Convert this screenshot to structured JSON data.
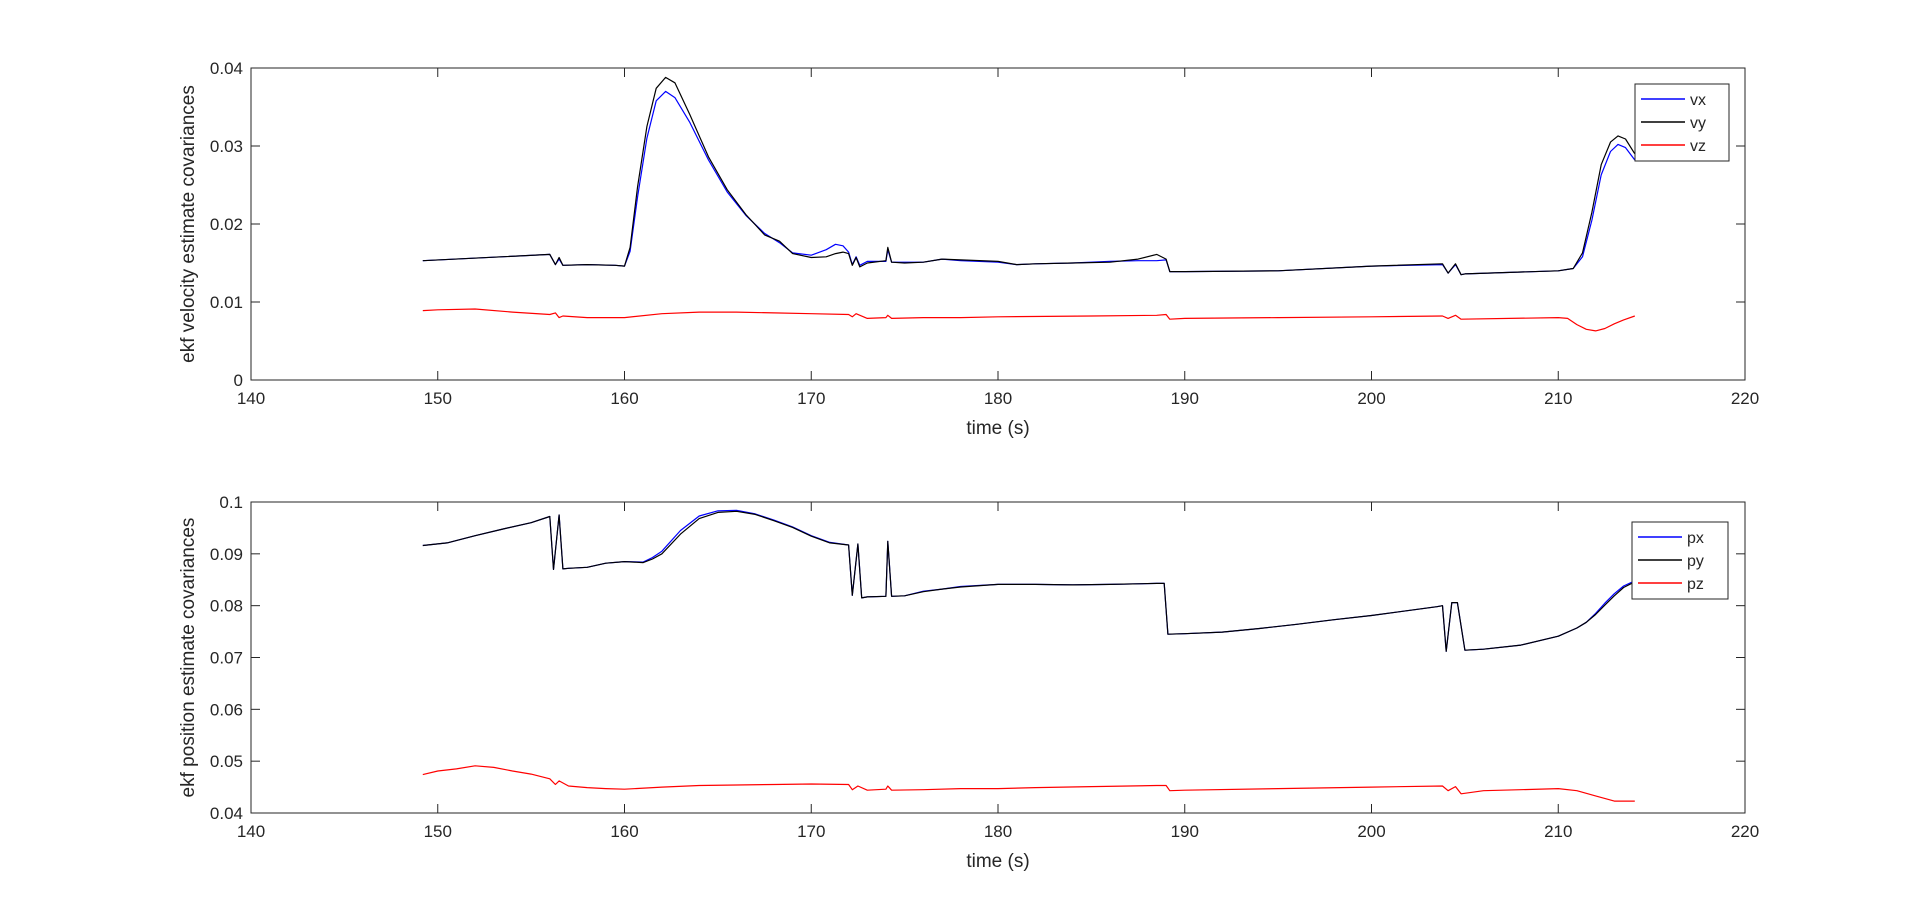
{
  "colors": {
    "blue": "#0000ff",
    "black": "#000000",
    "red": "#ff0000",
    "axis": "#262626",
    "background": "#ffffff"
  },
  "chart_data": [
    {
      "type": "line",
      "xlabel": "time (s)",
      "ylabel": "ekf velocity estimate covariances",
      "xlim": [
        140,
        220
      ],
      "ylim": [
        0,
        0.04
      ],
      "xticks": [
        "140",
        "150",
        "160",
        "170",
        "180",
        "190",
        "200",
        "210",
        "220"
      ],
      "yticks": [
        "0",
        "0.01",
        "0.02",
        "0.03",
        "0.04"
      ],
      "grid": false,
      "legend_position": "top-right",
      "series": [
        {
          "name": "vx",
          "color": "#0000ff",
          "x": [
            149.2,
            156,
            156.3,
            156.5,
            156.7,
            158,
            159.5,
            160,
            160.3,
            160.7,
            161.2,
            161.7,
            162.2,
            162.7,
            163.5,
            164.5,
            165.5,
            166.5,
            167.5,
            168.3,
            169,
            170,
            170.8,
            171.3,
            171.7,
            172,
            172.2,
            172.4,
            172.6,
            173,
            174,
            174.1,
            174.3,
            175,
            176,
            177,
            178,
            180,
            181,
            182,
            184,
            186,
            187.5,
            188.5,
            189,
            189.2,
            190,
            195,
            200,
            203.8,
            204.1,
            204.5,
            204.8,
            205,
            210,
            210.8,
            211.3,
            211.8,
            212.3,
            212.8,
            213.2,
            213.6,
            214.1
          ],
          "y": [
            0.0153,
            0.0161,
            0.0148,
            0.0155,
            0.0147,
            0.0148,
            0.0147,
            0.0146,
            0.0165,
            0.0235,
            0.031,
            0.0358,
            0.037,
            0.0362,
            0.033,
            0.0282,
            0.0241,
            0.0211,
            0.0188,
            0.0176,
            0.0163,
            0.016,
            0.0167,
            0.0174,
            0.0172,
            0.0164,
            0.0148,
            0.0158,
            0.0147,
            0.0152,
            0.0152,
            0.0167,
            0.0151,
            0.0151,
            0.0151,
            0.0155,
            0.0153,
            0.0151,
            0.0148,
            0.0149,
            0.015,
            0.0152,
            0.0153,
            0.0153,
            0.0154,
            0.0139,
            0.0139,
            0.014,
            0.0146,
            0.0148,
            0.0137,
            0.0148,
            0.0135,
            0.0136,
            0.014,
            0.0143,
            0.0158,
            0.0205,
            0.0263,
            0.0293,
            0.0302,
            0.0298,
            0.0282
          ]
        },
        {
          "name": "vy",
          "color": "#000000",
          "x": [
            149.2,
            156,
            156.3,
            156.5,
            156.7,
            158,
            159.5,
            160,
            160.3,
            160.7,
            161.2,
            161.7,
            162.2,
            162.7,
            163.5,
            164.5,
            165.5,
            166.5,
            167.5,
            168.3,
            169,
            170,
            170.8,
            171.3,
            171.7,
            172,
            172.2,
            172.4,
            172.6,
            173,
            174,
            174.1,
            174.3,
            175,
            176,
            177,
            178,
            180,
            181,
            182,
            184,
            186,
            187.5,
            188.5,
            189,
            189.2,
            190,
            195,
            200,
            203.8,
            204.1,
            204.5,
            204.8,
            205,
            210,
            210.8,
            211.3,
            211.8,
            212.3,
            212.8,
            213.2,
            213.6,
            214.1
          ],
          "y": [
            0.0153,
            0.0161,
            0.0148,
            0.0157,
            0.0147,
            0.0148,
            0.0147,
            0.0146,
            0.017,
            0.0248,
            0.0325,
            0.0374,
            0.0388,
            0.0381,
            0.034,
            0.0286,
            0.0244,
            0.0212,
            0.0186,
            0.0178,
            0.0162,
            0.0157,
            0.0158,
            0.0162,
            0.0164,
            0.0162,
            0.0147,
            0.0157,
            0.0145,
            0.015,
            0.0153,
            0.017,
            0.0151,
            0.015,
            0.0151,
            0.0155,
            0.0154,
            0.0152,
            0.0148,
            0.0149,
            0.015,
            0.0151,
            0.0155,
            0.0161,
            0.0155,
            0.0139,
            0.0139,
            0.014,
            0.0146,
            0.0149,
            0.0137,
            0.0149,
            0.0135,
            0.0136,
            0.014,
            0.0143,
            0.0163,
            0.0215,
            0.0276,
            0.0305,
            0.0313,
            0.0309,
            0.029
          ]
        },
        {
          "name": "vz",
          "color": "#ff0000",
          "x": [
            149.2,
            150,
            152,
            154,
            156,
            156.3,
            156.5,
            156.7,
            158,
            160,
            162,
            164,
            166,
            168,
            170,
            172,
            172.2,
            172.4,
            173,
            174,
            174.1,
            174.3,
            176,
            178,
            180,
            185,
            188.5,
            189,
            189.2,
            190,
            195,
            200,
            203.8,
            204.1,
            204.5,
            204.8,
            210,
            210.5,
            211,
            211.5,
            212,
            212.5,
            213,
            213.5,
            214.1
          ],
          "y": [
            0.0089,
            0.009,
            0.0091,
            0.0087,
            0.0084,
            0.0086,
            0.008,
            0.0082,
            0.008,
            0.008,
            0.0085,
            0.0087,
            0.0087,
            0.0086,
            0.0085,
            0.0084,
            0.0081,
            0.0085,
            0.0079,
            0.008,
            0.0083,
            0.0079,
            0.008,
            0.008,
            0.0081,
            0.0082,
            0.0083,
            0.0084,
            0.0078,
            0.0079,
            0.008,
            0.0081,
            0.0082,
            0.0079,
            0.0083,
            0.0078,
            0.008,
            0.0079,
            0.0071,
            0.0065,
            0.0063,
            0.0066,
            0.0072,
            0.0077,
            0.0082
          ]
        }
      ]
    },
    {
      "type": "line",
      "xlabel": "time (s)",
      "ylabel": "ekf position estimate covariances",
      "xlim": [
        140,
        220
      ],
      "ylim": [
        0.04,
        0.1
      ],
      "xticks": [
        "140",
        "150",
        "160",
        "170",
        "180",
        "190",
        "200",
        "210",
        "220"
      ],
      "yticks": [
        "0.04",
        "0.05",
        "0.06",
        "0.07",
        "0.08",
        "0.09",
        "0.1"
      ],
      "grid": false,
      "legend_position": "top-right",
      "series": [
        {
          "name": "px",
          "color": "#0000ff",
          "x": [
            149.2,
            150.5,
            152,
            153.5,
            155,
            156,
            156.2,
            156.5,
            156.7,
            157,
            158,
            159,
            160,
            161,
            161.5,
            162,
            163,
            164,
            165,
            166,
            167,
            168,
            169,
            170,
            171,
            172,
            172.2,
            172.5,
            172.7,
            173,
            174,
            174.1,
            174.3,
            175,
            176,
            177,
            178,
            180,
            182,
            184,
            186,
            188.5,
            188.9,
            189.1,
            190,
            192,
            194,
            196,
            198,
            200,
            203.5,
            203.8,
            204,
            204.3,
            204.6,
            205,
            206,
            208,
            210,
            211,
            211.5,
            212,
            212.5,
            213,
            213.5,
            214.1
          ],
          "y": [
            0.0916,
            0.0921,
            0.0935,
            0.0948,
            0.096,
            0.0972,
            0.087,
            0.0975,
            0.0871,
            0.0872,
            0.0874,
            0.0882,
            0.0885,
            0.0884,
            0.0893,
            0.0905,
            0.0945,
            0.0973,
            0.0983,
            0.0984,
            0.0977,
            0.0965,
            0.0952,
            0.0935,
            0.0922,
            0.0917,
            0.082,
            0.0919,
            0.0815,
            0.0817,
            0.0818,
            0.0924,
            0.0818,
            0.0819,
            0.0828,
            0.0832,
            0.0837,
            0.0841,
            0.0841,
            0.084,
            0.0841,
            0.0843,
            0.0843,
            0.0745,
            0.0746,
            0.0749,
            0.0756,
            0.0764,
            0.0773,
            0.0781,
            0.0798,
            0.08,
            0.0712,
            0.0806,
            0.0806,
            0.0714,
            0.0716,
            0.0724,
            0.0741,
            0.0757,
            0.0768,
            0.0785,
            0.0805,
            0.0823,
            0.0838,
            0.0848
          ]
        },
        {
          "name": "py",
          "color": "#000000",
          "x": [
            149.2,
            150.5,
            152,
            153.5,
            155,
            156,
            156.2,
            156.5,
            156.7,
            157,
            158,
            159,
            160,
            161,
            161.5,
            162,
            163,
            164,
            165,
            166,
            167,
            168,
            169,
            170,
            171,
            172,
            172.2,
            172.5,
            172.7,
            173,
            174,
            174.1,
            174.3,
            175,
            176,
            177,
            178,
            180,
            182,
            184,
            186,
            188.5,
            188.9,
            189.1,
            190,
            192,
            194,
            196,
            198,
            200,
            203.5,
            203.8,
            204,
            204.3,
            204.6,
            205,
            206,
            208,
            210,
            211,
            211.5,
            212,
            212.5,
            213,
            213.5,
            214.1
          ],
          "y": [
            0.0916,
            0.0921,
            0.0935,
            0.0948,
            0.096,
            0.0972,
            0.087,
            0.0975,
            0.0871,
            0.0872,
            0.0874,
            0.0882,
            0.0885,
            0.0883,
            0.089,
            0.09,
            0.0938,
            0.0968,
            0.098,
            0.0982,
            0.0976,
            0.0964,
            0.0951,
            0.0934,
            0.0921,
            0.0917,
            0.082,
            0.0919,
            0.0815,
            0.0817,
            0.0818,
            0.0924,
            0.0818,
            0.0819,
            0.0827,
            0.0832,
            0.0836,
            0.0841,
            0.0841,
            0.084,
            0.0841,
            0.0843,
            0.0843,
            0.0745,
            0.0746,
            0.0749,
            0.0756,
            0.0764,
            0.0773,
            0.0781,
            0.0798,
            0.08,
            0.0712,
            0.0806,
            0.0806,
            0.0714,
            0.0716,
            0.0724,
            0.0741,
            0.0757,
            0.0768,
            0.0783,
            0.0801,
            0.0819,
            0.0835,
            0.0846
          ]
        },
        {
          "name": "pz",
          "color": "#ff0000",
          "x": [
            149.2,
            150,
            151,
            152,
            153,
            154,
            155,
            156,
            156.3,
            156.5,
            157,
            158,
            159,
            160,
            162,
            164,
            166,
            168,
            170,
            172,
            172.2,
            172.5,
            173,
            174,
            174.1,
            174.3,
            176,
            178,
            180,
            182,
            185,
            188.5,
            189,
            189.2,
            190,
            195,
            200,
            203.8,
            204.1,
            204.5,
            204.8,
            206,
            208,
            210,
            211,
            212,
            213,
            214.1
          ],
          "y": [
            0.0474,
            0.0481,
            0.0485,
            0.0491,
            0.0488,
            0.0481,
            0.0475,
            0.0466,
            0.0455,
            0.0462,
            0.0452,
            0.0449,
            0.0447,
            0.0446,
            0.045,
            0.0453,
            0.0454,
            0.0455,
            0.0456,
            0.0455,
            0.0445,
            0.0452,
            0.0444,
            0.0446,
            0.0452,
            0.0444,
            0.0445,
            0.0447,
            0.0447,
            0.0449,
            0.0451,
            0.0453,
            0.0453,
            0.0443,
            0.0444,
            0.0447,
            0.045,
            0.0452,
            0.0443,
            0.0451,
            0.0437,
            0.0443,
            0.0445,
            0.0447,
            0.0443,
            0.0433,
            0.0423,
            0.0423
          ]
        }
      ]
    }
  ]
}
